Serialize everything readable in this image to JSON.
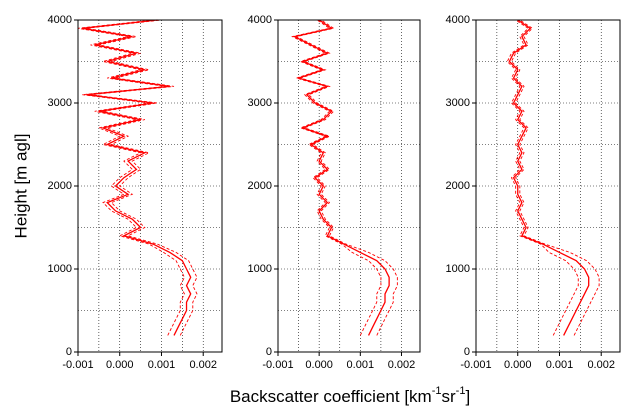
{
  "ylabel": "Height [m agl]",
  "xlabel": [
    "Backscatter coefficient [km",
    "-1",
    "sr",
    "-1",
    "]"
  ],
  "chart_data": [
    {
      "type": "line",
      "orientation": "vertical-profile",
      "xlim": [
        -0.001,
        0.00245
      ],
      "ylim": [
        0,
        4000
      ],
      "xticks": [
        -0.001,
        {
          "value": 0,
          "label": "0.000"
        },
        0.001,
        0.002
      ],
      "yticks": [
        0,
        1000,
        2000,
        3000,
        4000
      ],
      "xgrid": [
        -0.0005,
        0.0005,
        0.0015
      ],
      "ygrid": [
        500,
        1500,
        2500,
        3500
      ],
      "grid": true,
      "y": [
        200,
        300,
        400,
        500,
        600,
        700,
        800,
        900,
        1000,
        1100,
        1200,
        1300,
        1400,
        1500,
        1600,
        1700,
        1800,
        1900,
        2000,
        2100,
        2200,
        2300,
        2400,
        2500,
        2600,
        2700,
        2800,
        2900,
        3000,
        3100,
        3200,
        3300,
        3400,
        3500,
        3600,
        3700,
        3800,
        3900,
        4000
      ],
      "series": [
        {
          "color": "#ff0000",
          "dash": "solid",
          "values": [
            0.0013,
            0.0014,
            0.0015,
            0.0016,
            0.0016,
            0.0017,
            0.0016,
            0.0017,
            0.0016,
            0.0015,
            0.0012,
            0.0008,
            0.0001,
            0.0005,
            0.0003,
            -0.0001,
            -0.0003,
            0.0002,
            -0.0001,
            0.0001,
            0.0004,
            0.0002,
            0.0006,
            -0.0003,
            0.0001,
            -0.0004,
            0.0005,
            -0.0005,
            0.0008,
            -0.0008,
            0.0012,
            -0.0002,
            0.0006,
            -0.0003,
            0.0004,
            -0.0006,
            0.0003,
            -0.0009,
            0.0009
          ]
        },
        {
          "color": "#ff0000",
          "dash": "dashed",
          "values": [
            0.00145,
            0.00155,
            0.00165,
            0.00175,
            0.00175,
            0.00185,
            0.00175,
            0.00185,
            0.00175,
            0.00165,
            0.00135,
            0.0009,
            0.0002,
            0.0006,
            0.0004,
            0.0,
            -0.0002,
            0.0003,
            0.0,
            0.0002,
            0.0005,
            0.0003,
            0.0007,
            -0.0002,
            0.0002,
            -0.0003,
            0.0006,
            -0.0004,
            0.0009,
            -0.0007,
            0.0013,
            -0.0001,
            0.0007,
            -0.0002,
            0.0005,
            -0.0005,
            0.0004,
            -0.0008,
            0.001
          ]
        },
        {
          "color": "#ff0000",
          "dash": "dashed",
          "values": [
            0.00115,
            0.00125,
            0.00135,
            0.00145,
            0.00145,
            0.00155,
            0.00145,
            0.00155,
            0.00145,
            0.00135,
            0.00105,
            0.0007,
            0.0,
            0.0004,
            0.0002,
            -0.0002,
            -0.0004,
            0.0001,
            -0.0002,
            0.0,
            0.0003,
            0.0001,
            0.0005,
            -0.0004,
            0.0,
            -0.0005,
            0.0004,
            -0.0006,
            0.0007,
            -0.0009,
            0.0011,
            -0.0003,
            0.0005,
            -0.0004,
            0.0003,
            -0.0007,
            0.0002,
            -0.001,
            0.0008
          ]
        }
      ]
    },
    {
      "type": "line",
      "orientation": "vertical-profile",
      "xlim": [
        -0.001,
        0.00245
      ],
      "ylim": [
        0,
        4000
      ],
      "xticks": [
        -0.001,
        {
          "value": 0,
          "label": "0.000"
        },
        0.001,
        0.002
      ],
      "yticks": [
        0,
        1000,
        2000,
        3000,
        4000
      ],
      "xgrid": [
        -0.0005,
        0.0005,
        0.0015
      ],
      "ygrid": [
        500,
        1500,
        2500,
        3500
      ],
      "grid": true,
      "y": [
        200,
        300,
        400,
        500,
        600,
        700,
        800,
        900,
        1000,
        1100,
        1200,
        1300,
        1400,
        1500,
        1600,
        1700,
        1800,
        1900,
        2000,
        2100,
        2200,
        2300,
        2400,
        2500,
        2600,
        2700,
        2800,
        2900,
        3000,
        3100,
        3200,
        3300,
        3400,
        3500,
        3600,
        3700,
        3800,
        3900,
        4000
      ],
      "series": [
        {
          "color": "#ff0000",
          "dash": "solid",
          "values": [
            0.0012,
            0.0013,
            0.0014,
            0.0015,
            0.0016,
            0.0016,
            0.0017,
            0.0017,
            0.0016,
            0.0014,
            0.001,
            0.0006,
            0.0002,
            0.0003,
            0.0001,
            0.0,
            0.0002,
            0.0,
            0.0001,
            -0.0001,
            0.0002,
            0.0,
            0.0001,
            -0.0002,
            0.0002,
            -0.0004,
            0.0001,
            0.0003,
            -0.0001,
            -0.0003,
            0.0002,
            -0.0005,
            0.0001,
            -0.0004,
            0.0002,
            -0.0002,
            -0.0006,
            0.0003,
            0.0
          ]
        },
        {
          "color": "#ff0000",
          "dash": "dashed",
          "values": [
            0.0014,
            0.0015,
            0.0016,
            0.0017,
            0.0018,
            0.0018,
            0.0019,
            0.0019,
            0.0018,
            0.0016,
            0.0012,
            0.00065,
            0.00025,
            0.00035,
            0.00015,
            5e-05,
            0.00025,
            5e-05,
            0.00015,
            -5e-05,
            0.00025,
            5e-05,
            0.00015,
            -0.00015,
            0.00025,
            -0.00035,
            0.00015,
            0.00035,
            -5e-05,
            -0.00025,
            0.00025,
            -0.00045,
            0.00015,
            -0.00035,
            0.00025,
            -0.00015,
            -0.00055,
            0.00035,
            5e-05
          ]
        },
        {
          "color": "#ff0000",
          "dash": "dashed",
          "values": [
            0.001,
            0.0011,
            0.0012,
            0.0013,
            0.0014,
            0.0014,
            0.0015,
            0.0015,
            0.0014,
            0.0012,
            0.0008,
            0.00055,
            0.00015,
            0.00025,
            5e-05,
            -5e-05,
            0.00015,
            -5e-05,
            5e-05,
            -0.00015,
            0.00015,
            -5e-05,
            5e-05,
            -0.00025,
            0.00015,
            -0.00045,
            5e-05,
            0.00025,
            -0.00015,
            -0.00035,
            0.00015,
            -0.00055,
            5e-05,
            -0.00045,
            0.00015,
            -0.00025,
            -0.00065,
            0.00025,
            -5e-05
          ]
        }
      ]
    },
    {
      "type": "line",
      "orientation": "vertical-profile",
      "xlim": [
        -0.001,
        0.00245
      ],
      "ylim": [
        0,
        4000
      ],
      "xticks": [
        -0.001,
        {
          "value": 0,
          "label": "0.000"
        },
        0.001,
        0.002
      ],
      "yticks": [
        0,
        1000,
        2000,
        3000,
        4000
      ],
      "xgrid": [
        -0.0005,
        0.0005,
        0.0015
      ],
      "ygrid": [
        500,
        1500,
        2500,
        3500
      ],
      "grid": true,
      "y": [
        200,
        300,
        400,
        500,
        600,
        700,
        800,
        900,
        1000,
        1100,
        1200,
        1300,
        1400,
        1500,
        1600,
        1700,
        1800,
        1900,
        2000,
        2100,
        2200,
        2300,
        2400,
        2500,
        2600,
        2700,
        2800,
        2900,
        3000,
        3100,
        3200,
        3300,
        3400,
        3500,
        3600,
        3700,
        3800,
        3900,
        4000
      ],
      "series": [
        {
          "color": "#ff0000",
          "dash": "solid",
          "values": [
            0.0011,
            0.0012,
            0.0013,
            0.0014,
            0.0015,
            0.0016,
            0.0017,
            0.0017,
            0.0016,
            0.0014,
            0.001,
            0.0006,
            0.0001,
            0.0002,
            0.0001,
            0.0,
            0.0001,
            0.0,
            0.0,
            -0.0001,
            0.0001,
            0.0,
            0.0001,
            0.0,
            0.0001,
            0.0002,
            0.0,
            0.0001,
            -0.0001,
            0.0,
            0.0001,
            -0.0001,
            0.0,
            -0.0002,
            -0.0001,
            0.0002,
            0.0001,
            0.0003,
            0.0
          ]
        },
        {
          "color": "#ff0000",
          "dash": "dashed",
          "values": [
            0.00135,
            0.00145,
            0.00155,
            0.00165,
            0.00175,
            0.00185,
            0.00195,
            0.00195,
            0.00185,
            0.00165,
            0.00125,
            0.00065,
            0.00015,
            0.00025,
            0.00015,
            5e-05,
            0.00015,
            5e-05,
            5e-05,
            -5e-05,
            0.00015,
            5e-05,
            0.00015,
            5e-05,
            0.00015,
            0.00025,
            5e-05,
            0.00015,
            -5e-05,
            5e-05,
            0.00015,
            -5e-05,
            5e-05,
            -0.00015,
            -5e-05,
            0.00025,
            0.00015,
            0.00035,
            5e-05
          ]
        },
        {
          "color": "#ff0000",
          "dash": "dashed",
          "values": [
            0.00085,
            0.00095,
            0.00105,
            0.00115,
            0.00125,
            0.00135,
            0.00145,
            0.00145,
            0.00135,
            0.00115,
            0.00075,
            0.00055,
            5e-05,
            0.00015,
            5e-05,
            -5e-05,
            5e-05,
            -5e-05,
            -5e-05,
            -0.00015,
            5e-05,
            -5e-05,
            5e-05,
            -5e-05,
            5e-05,
            0.00015,
            -5e-05,
            5e-05,
            -0.00015,
            -5e-05,
            5e-05,
            -0.00015,
            -5e-05,
            -0.00025,
            -0.00015,
            0.00015,
            5e-05,
            0.00025,
            -5e-05
          ]
        }
      ]
    }
  ]
}
